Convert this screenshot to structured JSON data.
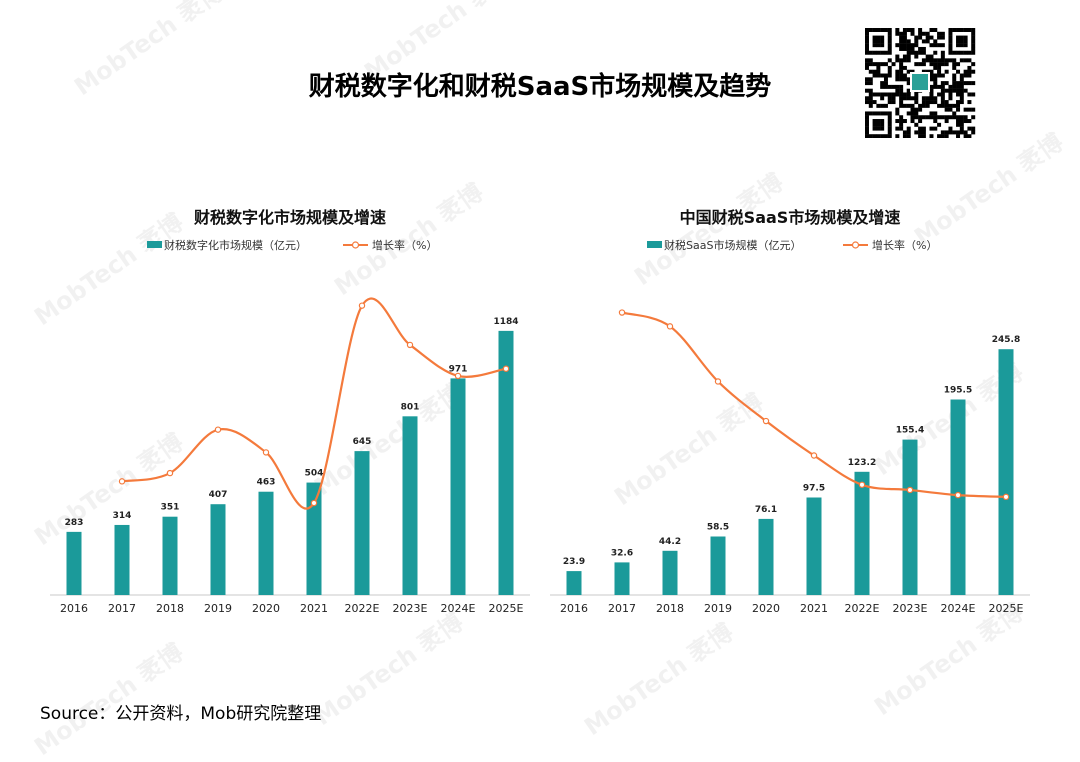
{
  "title": "财税数字化和财税SaaS市场规模及趋势",
  "source": "Source：公开资料，Mob研究院整理",
  "watermark": "MobTech 袤博",
  "colors": {
    "bar": "#1b9a9a",
    "line": "#f47a3c"
  },
  "chart_data": [
    {
      "type": "bar",
      "title": "财税数字化市场规模及增速",
      "categories": [
        "2016",
        "2017",
        "2018",
        "2019",
        "2020",
        "2021",
        "2022E",
        "2023E",
        "2024E",
        "2025E"
      ],
      "series": [
        {
          "name": "财税数字化市场规模（亿元）",
          "type": "bar",
          "values": [
            283,
            314,
            351,
            407,
            463,
            504,
            645,
            801,
            971,
            1184
          ]
        },
        {
          "name": "增长率（%）",
          "type": "line",
          "smooth": true,
          "values": [
            null,
            11,
            11.8,
            16,
            13.8,
            8.9,
            28,
            24.2,
            21.2,
            21.9
          ]
        }
      ],
      "bar_ylim": [
        0,
        1300
      ],
      "line_ylim": [
        0,
        30
      ],
      "data_labels": true,
      "legend": "top"
    },
    {
      "type": "bar",
      "title": "中国财税SaaS市场规模及增速",
      "categories": [
        "2016",
        "2017",
        "2018",
        "2019",
        "2020",
        "2021",
        "2022E",
        "2023E",
        "2024E",
        "2025E"
      ],
      "series": [
        {
          "name": "财税SaaS市场规模（亿元）",
          "type": "bar",
          "values": [
            23.9,
            32.6,
            44.2,
            58.5,
            76.1,
            97.5,
            123.2,
            155.4,
            195.5,
            245.8
          ]
        },
        {
          "name": "增长率（%）",
          "type": "line",
          "smooth": true,
          "values": [
            null,
            36.4,
            35.6,
            32.4,
            30.1,
            28.1,
            26.4,
            26.1,
            25.8,
            25.7
          ]
        }
      ],
      "bar_ylim": [
        0,
        290
      ],
      "line_ylim": [
        20,
        38
      ],
      "data_labels": true,
      "legend": "top"
    }
  ]
}
